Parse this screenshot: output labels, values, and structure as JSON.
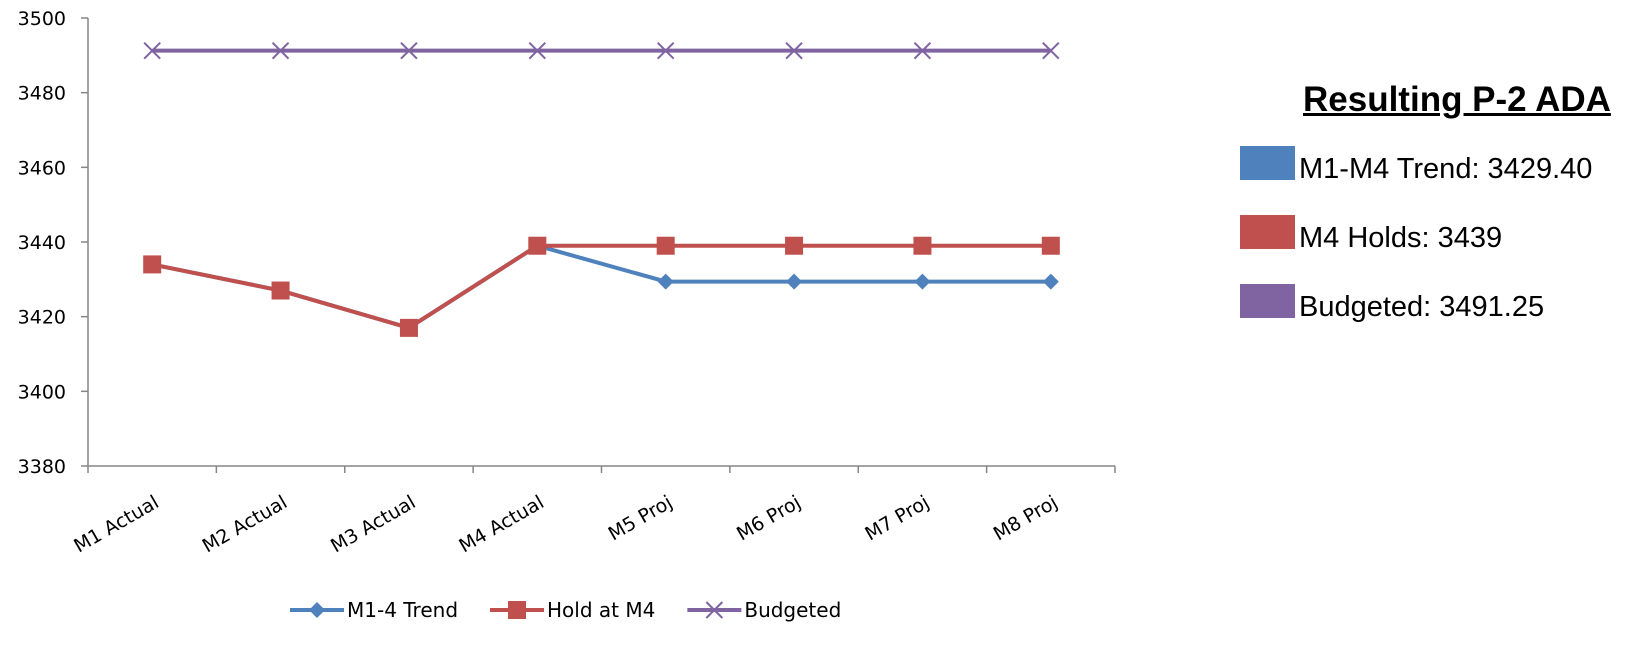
{
  "chart_data": {
    "type": "line",
    "categories": [
      "M1 Actual",
      "M2 Actual",
      "M3 Actual",
      "M4 Actual",
      "M5 Proj",
      "M6 Proj",
      "M7 Proj",
      "M8 Proj"
    ],
    "series": [
      {
        "name": "M1-4 Trend",
        "color": "#4F81BD",
        "marker": "diamond",
        "values": [
          3434,
          3427,
          3417,
          3439,
          3429.4,
          3429.4,
          3429.4,
          3429.4
        ]
      },
      {
        "name": "Hold at M4",
        "color": "#C0504D",
        "marker": "square",
        "values": [
          3434,
          3427,
          3417,
          3439,
          3439,
          3439,
          3439,
          3439
        ]
      },
      {
        "name": "Budgeted",
        "color": "#8064A2",
        "marker": "x",
        "values": [
          3491.25,
          3491.25,
          3491.25,
          3491.25,
          3491.25,
          3491.25,
          3491.25,
          3491.25
        ]
      }
    ],
    "ylim": [
      3380,
      3500
    ],
    "yticks": [
      "3380",
      "3400",
      "3420",
      "3440",
      "3460",
      "3480",
      "3500"
    ],
    "grid": false,
    "legend": "bottom"
  },
  "side_panel": {
    "title": "Resulting P-2 ADA",
    "items": [
      {
        "label": "M1-M4 Trend: 3429.40",
        "color": "#4F81BD"
      },
      {
        "label": "M4 Holds: 3439",
        "color": "#C0504D"
      },
      {
        "label": "Budgeted: 3491.25",
        "color": "#8064A2"
      }
    ]
  }
}
